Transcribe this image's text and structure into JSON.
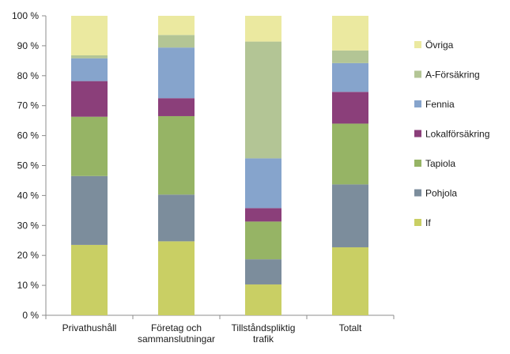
{
  "chart_data": {
    "type": "bar",
    "stacked": true,
    "title": "",
    "xlabel": "",
    "ylabel": "",
    "ylim": [
      0,
      100
    ],
    "y_ticks": [
      "0 %",
      "10 %",
      "20 %",
      "30 %",
      "40 %",
      "50 %",
      "60 %",
      "70 %",
      "80 %",
      "90 %",
      "100 %"
    ],
    "grid": false,
    "legend_position": "right",
    "categories": [
      [
        "Privathushåll"
      ],
      [
        "Företag och",
        "sammanslutningar"
      ],
      [
        "Tillståndspliktig",
        "trafik"
      ],
      [
        "Totalt"
      ]
    ],
    "series": [
      {
        "name": "If",
        "color": "#c9cf64",
        "values": [
          23.5,
          24.7,
          10.3,
          22.7
        ]
      },
      {
        "name": "Pohjola",
        "color": "#7c8d9c",
        "values": [
          23.0,
          15.6,
          8.4,
          21.0
        ]
      },
      {
        "name": "Tapiola",
        "color": "#96b465",
        "values": [
          19.8,
          26.2,
          12.6,
          20.3
        ]
      },
      {
        "name": "Lokalförsäkring",
        "color": "#8b3f7a",
        "values": [
          11.9,
          6.0,
          4.5,
          10.6
        ]
      },
      {
        "name": "Fennia",
        "color": "#86a4cc",
        "values": [
          7.6,
          16.9,
          16.6,
          9.6
        ]
      },
      {
        "name": "A-Försäkring",
        "color": "#b3c595",
        "values": [
          1.0,
          4.2,
          39.0,
          4.2
        ]
      },
      {
        "name": "Övriga",
        "color": "#ebe9a0",
        "values": [
          13.2,
          6.4,
          8.6,
          11.6
        ]
      }
    ]
  }
}
